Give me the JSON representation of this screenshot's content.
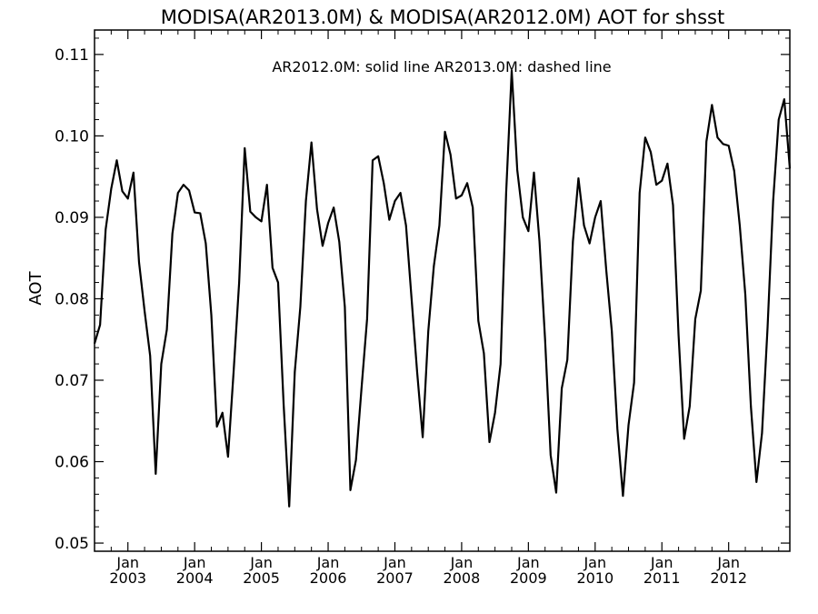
{
  "chart_data": {
    "type": "line",
    "title": "MODISA(AR2013.0M) & MODISA(AR2012.0M)  AOT for shsst",
    "annotation": "AR2012.0M: solid line   AR2013.0M: dashed line",
    "ylabel": "AOT",
    "ylim": [
      0.049,
      0.113
    ],
    "yticks": [
      0.05,
      0.06,
      0.07,
      0.08,
      0.09,
      0.1,
      0.11
    ],
    "ytick_labels": [
      "0.05",
      "0.06",
      "0.07",
      "0.08",
      "0.09",
      "0.10",
      "0.11"
    ],
    "xlim": [
      "2002-07",
      "2012-12"
    ],
    "xticks": [
      {
        "top": "Jan",
        "bottom": "2003",
        "x": "2003-01"
      },
      {
        "top": "Jan",
        "bottom": "2004",
        "x": "2004-01"
      },
      {
        "top": "Jan",
        "bottom": "2005",
        "x": "2005-01"
      },
      {
        "top": "Jan",
        "bottom": "2006",
        "x": "2006-01"
      },
      {
        "top": "Jan",
        "bottom": "2007",
        "x": "2007-01"
      },
      {
        "top": "Jan",
        "bottom": "2008",
        "x": "2008-01"
      },
      {
        "top": "Jan",
        "bottom": "2009",
        "x": "2009-01"
      },
      {
        "top": "Jan",
        "bottom": "2010",
        "x": "2010-01"
      },
      {
        "top": "Jan",
        "bottom": "2011",
        "x": "2011-01"
      },
      {
        "top": "Jan",
        "bottom": "2012",
        "x": "2012-01"
      }
    ],
    "grid": false,
    "series": [
      {
        "name": "AR2012.0M",
        "style": "solid",
        "color": "#000000",
        "x": [
          "2002-07",
          "2002-08",
          "2002-09",
          "2002-10",
          "2002-11",
          "2002-12",
          "2003-01",
          "2003-02",
          "2003-03",
          "2003-04",
          "2003-05",
          "2003-06",
          "2003-07",
          "2003-08",
          "2003-09",
          "2003-10",
          "2003-11",
          "2003-12",
          "2004-01",
          "2004-02",
          "2004-03",
          "2004-04",
          "2004-05",
          "2004-06",
          "2004-07",
          "2004-08",
          "2004-09",
          "2004-10",
          "2004-11",
          "2004-12",
          "2005-01",
          "2005-02",
          "2005-03",
          "2005-04",
          "2005-05",
          "2005-06",
          "2005-07",
          "2005-08",
          "2005-09",
          "2005-10",
          "2005-11",
          "2005-12",
          "2006-01",
          "2006-02",
          "2006-03",
          "2006-04",
          "2006-05",
          "2006-06",
          "2006-07",
          "2006-08",
          "2006-09",
          "2006-10",
          "2006-11",
          "2006-12",
          "2007-01",
          "2007-02",
          "2007-03",
          "2007-04",
          "2007-05",
          "2007-06",
          "2007-07",
          "2007-08",
          "2007-09",
          "2007-10",
          "2007-11",
          "2007-12",
          "2008-01",
          "2008-02",
          "2008-03",
          "2008-04",
          "2008-05",
          "2008-06",
          "2008-07",
          "2008-08",
          "2008-09",
          "2008-10",
          "2008-11",
          "2008-12",
          "2009-01",
          "2009-02",
          "2009-03",
          "2009-04",
          "2009-05",
          "2009-06",
          "2009-07",
          "2009-08",
          "2009-09",
          "2009-10",
          "2009-11",
          "2009-12",
          "2010-01",
          "2010-02",
          "2010-03",
          "2010-04",
          "2010-05",
          "2010-06",
          "2010-07",
          "2010-08",
          "2010-09",
          "2010-10",
          "2010-11",
          "2010-12",
          "2011-01",
          "2011-02",
          "2011-03",
          "2011-04",
          "2011-05",
          "2011-06",
          "2011-07",
          "2011-08",
          "2011-09",
          "2011-10",
          "2011-11",
          "2011-12",
          "2012-01",
          "2012-02",
          "2012-03",
          "2012-04",
          "2012-05",
          "2012-06",
          "2012-07",
          "2012-08",
          "2012-09",
          "2012-10",
          "2012-11",
          "2012-12"
        ],
        "values": [
          0.0745,
          0.0768,
          0.0885,
          0.0935,
          0.097,
          0.0932,
          0.0923,
          0.0955,
          0.0845,
          0.0785,
          0.073,
          0.0585,
          0.072,
          0.0762,
          0.088,
          0.093,
          0.094,
          0.0933,
          0.0906,
          0.0905,
          0.0868,
          0.078,
          0.0643,
          0.066,
          0.0606,
          0.071,
          0.082,
          0.0985,
          0.0907,
          0.09,
          0.0895,
          0.094,
          0.0838,
          0.082,
          0.067,
          0.0545,
          0.071,
          0.079,
          0.092,
          0.0992,
          0.091,
          0.0865,
          0.0893,
          0.0912,
          0.087,
          0.079,
          0.0565,
          0.0602,
          0.069,
          0.0775,
          0.097,
          0.0975,
          0.0942,
          0.0897,
          0.092,
          0.093,
          0.089,
          0.08,
          0.071,
          0.063,
          0.076,
          0.084,
          0.089,
          0.1005,
          0.0977,
          0.0923,
          0.0927,
          0.0942,
          0.0912,
          0.0773,
          0.0733,
          0.0624,
          0.066,
          0.072,
          0.093,
          0.108,
          0.0958,
          0.09,
          0.0883,
          0.0955,
          0.087,
          0.075,
          0.0608,
          0.0562,
          0.069,
          0.0725,
          0.087,
          0.0948,
          0.089,
          0.0868,
          0.09,
          0.092,
          0.0835,
          0.076,
          0.064,
          0.0558,
          0.0645,
          0.0697,
          0.093,
          0.0998,
          0.098,
          0.094,
          0.0945,
          0.0966,
          0.0915,
          0.0755,
          0.0628,
          0.0668,
          0.0775,
          0.081,
          0.0993,
          0.1038,
          0.0998,
          0.099,
          0.0988,
          0.0957,
          0.089,
          0.0805,
          0.0668,
          0.0575,
          0.0635,
          0.0765,
          0.092,
          0.102,
          0.1045,
          0.096
        ]
      }
    ]
  }
}
